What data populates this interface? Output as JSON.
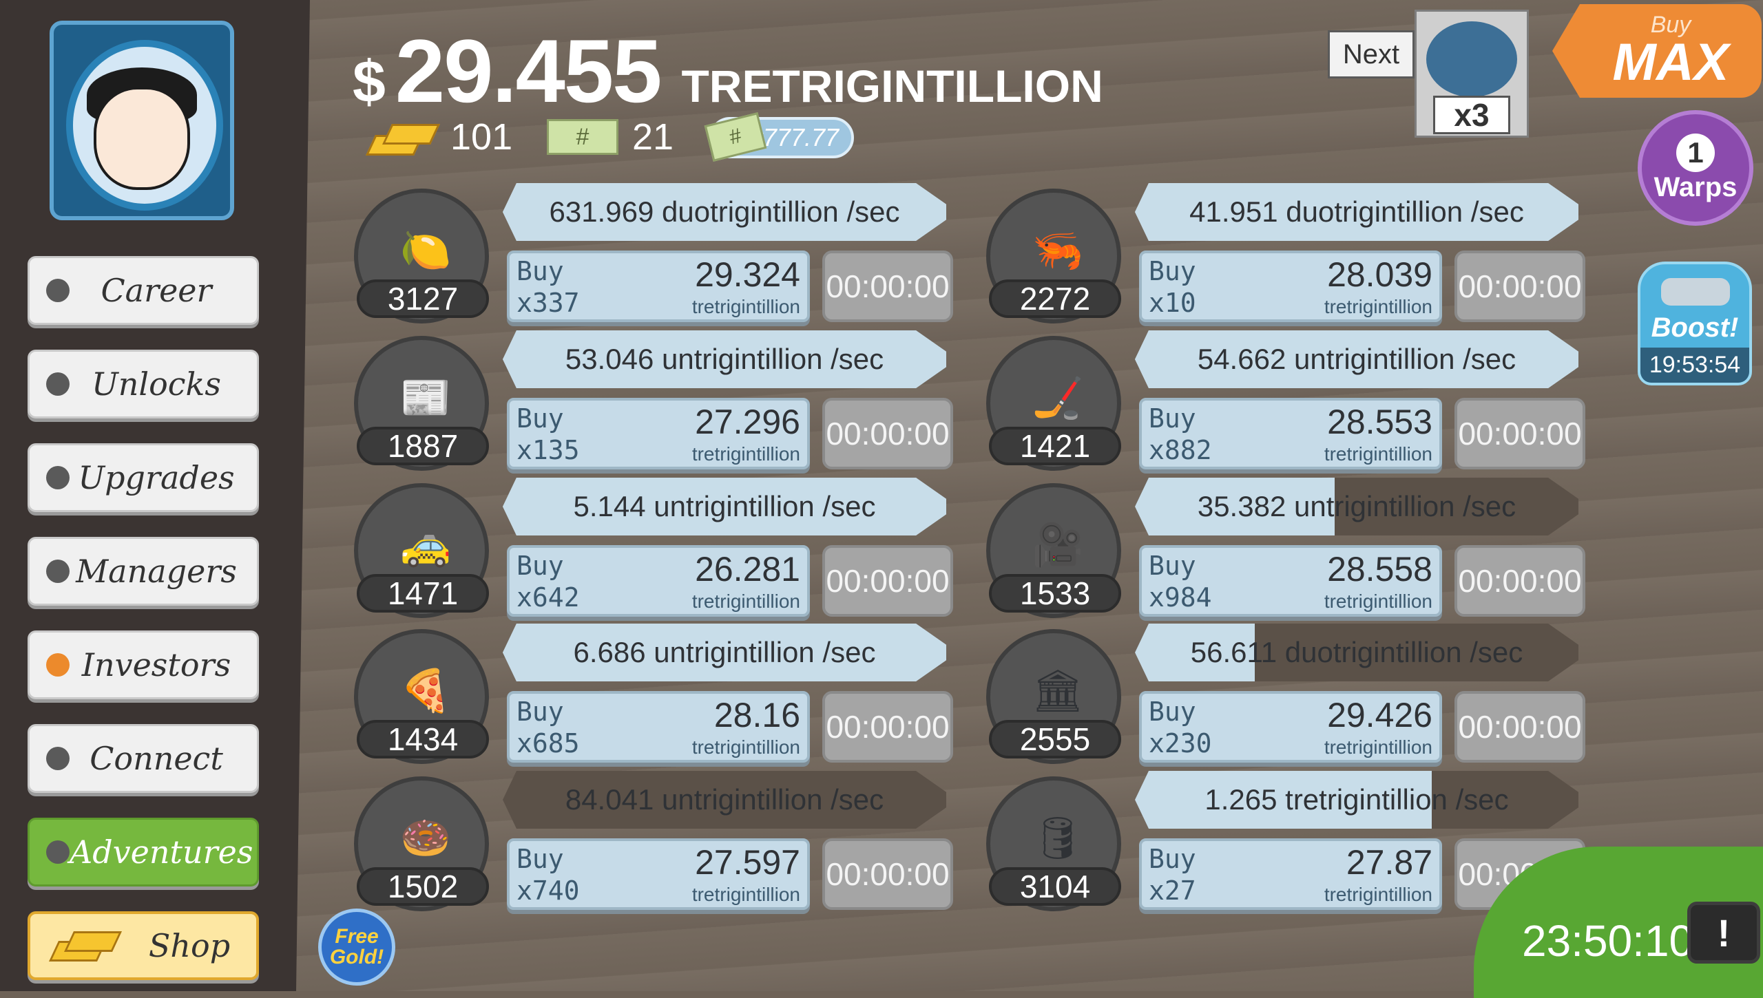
{
  "header": {
    "currency": "$",
    "money": "29.455",
    "money_unit": "TRETRIGINTILLION",
    "gold_count": "101",
    "mega_tickets": "21",
    "ticket_glyph": "#",
    "multiplier": "x777.77"
  },
  "sidebar": {
    "items": [
      {
        "label": "Career"
      },
      {
        "label": "Unlocks"
      },
      {
        "label": "Upgrades"
      },
      {
        "label": "Managers"
      },
      {
        "label": "Investors"
      },
      {
        "label": "Connect"
      },
      {
        "label": "Adventures"
      },
      {
        "label": "Shop"
      }
    ]
  },
  "next": {
    "label": "Next",
    "count": "x3"
  },
  "buy_max": {
    "top": "Buy",
    "bottom": "MAX"
  },
  "warps": {
    "count": "1",
    "label": "Warps"
  },
  "boost": {
    "label": "Boost!",
    "timer": "19:53:54"
  },
  "free_gold": {
    "label": "Free Gold!"
  },
  "bottom_timer": "23:50:10",
  "tv_glyph": "!",
  "businesses": [
    {
      "icon": "lemon-icon",
      "count": "3127",
      "rate": "631.969 duotrigintillion /sec",
      "progress": 1.0,
      "buy_word": "Buy",
      "buy_qty": "x337",
      "price": "29.324",
      "price_unit": "tretrigintillion",
      "timer": "00:00:00"
    },
    {
      "icon": "newspaper-icon",
      "count": "1887",
      "rate": "53.046 untrigintillion /sec",
      "progress": 1.0,
      "buy_word": "Buy",
      "buy_qty": "x135",
      "price": "27.296",
      "price_unit": "tretrigintillion",
      "timer": "00:00:00"
    },
    {
      "icon": "car-wash-icon",
      "count": "1471",
      "rate": "5.144 untrigintillion /sec",
      "progress": 1.0,
      "buy_word": "Buy",
      "buy_qty": "x642",
      "price": "26.281",
      "price_unit": "tretrigintillion",
      "timer": "00:00:00"
    },
    {
      "icon": "pizza-icon",
      "count": "1434",
      "rate": "6.686 untrigintillion /sec",
      "progress": 1.0,
      "buy_word": "Buy",
      "buy_qty": "x685",
      "price": "28.16",
      "price_unit": "tretrigintillion",
      "timer": "00:00:00"
    },
    {
      "icon": "donut-icon",
      "count": "1502",
      "rate": "84.041 untrigintillion /sec",
      "progress": 0.0,
      "buy_word": "Buy",
      "buy_qty": "x740",
      "price": "27.597",
      "price_unit": "tretrigintillion",
      "timer": "00:00:00"
    },
    {
      "icon": "shrimp-icon",
      "count": "2272",
      "rate": "41.951 duotrigintillion /sec",
      "progress": 1.0,
      "buy_word": "Buy",
      "buy_qty": "x10",
      "price": "28.039",
      "price_unit": "tretrigintillion",
      "timer": "00:00:00"
    },
    {
      "icon": "hockey-icon",
      "count": "1421",
      "rate": "54.662 untrigintillion /sec",
      "progress": 1.0,
      "buy_word": "Buy",
      "buy_qty": "x882",
      "price": "28.553",
      "price_unit": "tretrigintillion",
      "timer": "00:00:00"
    },
    {
      "icon": "movie-camera-icon",
      "count": "1533",
      "rate": "35.382 untrigintillion /sec",
      "progress": 0.45,
      "buy_word": "Buy",
      "buy_qty": "x984",
      "price": "28.558",
      "price_unit": "tretrigintillion",
      "timer": "00:00:00"
    },
    {
      "icon": "bank-icon",
      "count": "2555",
      "rate": "56.611 duotrigintillion /sec",
      "progress": 0.27,
      "buy_word": "Buy",
      "buy_qty": "x230",
      "price": "29.426",
      "price_unit": "tretrigintillion",
      "timer": "00:00:00"
    },
    {
      "icon": "oil-rig-icon",
      "count": "3104",
      "rate": "1.265 tretrigintillion /sec",
      "progress": 0.67,
      "buy_word": "Buy",
      "buy_qty": "x27",
      "price": "27.87",
      "price_unit": "tretrigintillion",
      "timer": "00:00:00"
    }
  ]
}
